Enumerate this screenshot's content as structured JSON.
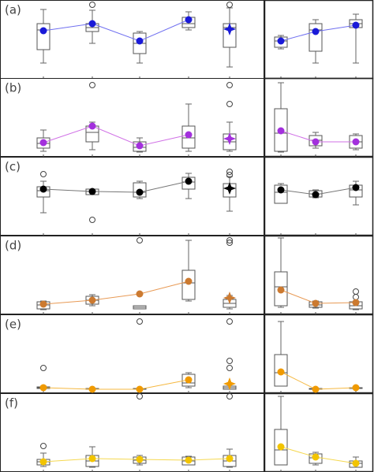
{
  "chart_data": [
    {
      "type": "box",
      "title": "(a)",
      "categories": [
        null,
        null,
        null,
        null,
        null
      ],
      "ylim": [
        0,
        100
      ],
      "color": "#1a1ad8",
      "line_color": "#7070f0",
      "markers": [
        "circle",
        "circle",
        "circle",
        "circle",
        "star"
      ],
      "min": [
        20,
        45,
        20,
        62,
        15
      ],
      "q1": [
        37,
        60,
        32,
        65,
        40
      ],
      "median": [
        62,
        65,
        45,
        70,
        65
      ],
      "q3": [
        70,
        70,
        58,
        78,
        70
      ],
      "max": [
        88,
        87,
        60,
        85,
        90
      ],
      "mean": [
        61,
        70,
        48,
        75,
        63
      ],
      "outliers": [
        [],
        [
          94
        ],
        [],
        [],
        [
          94
        ]
      ]
    },
    {
      "type": "box",
      "categories": [
        null,
        null,
        null
      ],
      "ylim": [
        0,
        100
      ],
      "color": "#1a1ad8",
      "line_color": "#7070f0",
      "markers": [
        "circle",
        "circle",
        "circle"
      ],
      "min": [
        38,
        20,
        20
      ],
      "q1": [
        40,
        35,
        65
      ],
      "median": [
        48,
        62,
        70
      ],
      "q3": [
        53,
        70,
        75
      ],
      "max": [
        55,
        75,
        82
      ],
      "mean": [
        48,
        60,
        68
      ],
      "outliers": [
        [],
        [],
        []
      ]
    },
    {
      "type": "box",
      "title": "(b)",
      "categories": [
        null,
        null,
        null,
        null,
        null
      ],
      "ylim": [
        0,
        100
      ],
      "color": "#a330dd",
      "line_color": "#d070e6",
      "markers": [
        "circle",
        "circle",
        "circle",
        "circle",
        "star"
      ],
      "min": [
        7,
        9,
        6,
        7,
        7
      ],
      "q1": [
        11,
        19,
        7,
        11,
        9
      ],
      "median": [
        17,
        31,
        12,
        24,
        19
      ],
      "q3": [
        24,
        39,
        19,
        39,
        29
      ],
      "max": [
        34,
        44,
        24,
        67,
        44
      ],
      "mean": [
        18,
        39,
        14,
        28,
        23
      ],
      "outliers": [
        [],
        [
          91
        ],
        [],
        [],
        [
          91,
          67
        ]
      ]
    },
    {
      "type": "box",
      "categories": [
        null,
        null,
        null
      ],
      "ylim": [
        0,
        100
      ],
      "color": "#a330dd",
      "line_color": "#d070e6",
      "markers": [
        "circle",
        "circle",
        "circle"
      ],
      "min": [
        6,
        11,
        9
      ],
      "q1": [
        7,
        14,
        11
      ],
      "median": [
        30,
        21,
        19
      ],
      "q3": [
        61,
        27,
        27
      ],
      "max": [
        94,
        31,
        29
      ],
      "mean": [
        33,
        19,
        19
      ],
      "outliers": [
        [],
        [],
        []
      ]
    },
    {
      "type": "box",
      "title": "(c)",
      "categories": [
        null,
        null,
        null,
        null,
        null
      ],
      "ylim": [
        0,
        100
      ],
      "color": "#000000",
      "line_color": "#777777",
      "markers": [
        "circle",
        "circle",
        "circle",
        "circle",
        "star"
      ],
      "min": [
        29,
        52,
        47,
        47,
        31
      ],
      "q1": [
        49,
        52,
        49,
        59,
        49
      ],
      "median": [
        57,
        56,
        55,
        68,
        60
      ],
      "q3": [
        62,
        59,
        67,
        74,
        66
      ],
      "max": [
        69,
        59,
        69,
        79,
        75
      ],
      "mean": [
        59,
        56,
        55,
        69,
        60
      ],
      "outliers": [
        [
          78
        ],
        [
          20
        ],
        [],
        [],
        [
          81,
          77
        ]
      ]
    },
    {
      "type": "box",
      "categories": [
        null,
        null,
        null
      ],
      "ylim": [
        0,
        100
      ],
      "color": "#000000",
      "line_color": "#777777",
      "markers": [
        "circle",
        "circle",
        "circle"
      ],
      "min": [
        41,
        48,
        39
      ],
      "q1": [
        41,
        49,
        49
      ],
      "median": [
        55,
        53,
        58
      ],
      "q3": [
        64,
        57,
        64
      ],
      "max": [
        66,
        58,
        69
      ],
      "mean": [
        58,
        52,
        61
      ],
      "outliers": [
        [],
        [],
        []
      ]
    },
    {
      "type": "box",
      "title": "(d)",
      "categories": [
        null,
        null,
        null,
        null,
        null
      ],
      "ylim": [
        0,
        100
      ],
      "color": "#cc7a30",
      "line_color": "#e89a55",
      "markers": [
        "circle",
        "circle",
        "circle",
        "circle",
        "star"
      ],
      "min": [
        6,
        11,
        7,
        17,
        7
      ],
      "q1": [
        7,
        13,
        7,
        19,
        9
      ],
      "median": [
        12,
        18,
        9,
        40,
        14
      ],
      "q3": [
        16,
        23,
        11,
        56,
        19
      ],
      "max": [
        17,
        25,
        11,
        94,
        24
      ],
      "mean": [
        13,
        18,
        26,
        42,
        21
      ],
      "outliers": [
        [],
        [],
        [
          94
        ],
        [],
        [
          94,
          91
        ]
      ]
    },
    {
      "type": "box",
      "categories": [
        null,
        null,
        null
      ],
      "ylim": [
        0,
        100
      ],
      "color": "#cc7a30",
      "line_color": "#e89a55",
      "markers": [
        "circle",
        "circle",
        "circle"
      ],
      "min": [
        9,
        8,
        6
      ],
      "q1": [
        11,
        9,
        7
      ],
      "median": [
        35,
        12,
        11
      ],
      "q3": [
        54,
        16,
        16
      ],
      "max": [
        97,
        17,
        17
      ],
      "mean": [
        31,
        14,
        15
      ],
      "outliers": [
        [],
        [],
        [
          29,
          22
        ]
      ]
    },
    {
      "type": "box",
      "title": "(e)",
      "categories": [
        null,
        null,
        null,
        null,
        null
      ],
      "ylim": [
        0,
        100
      ],
      "color": "#f09a00",
      "line_color": "#f5b840",
      "markers": [
        "circle",
        "circle",
        "circle",
        "circle",
        "star"
      ],
      "min": [
        6,
        5,
        5,
        7,
        5
      ],
      "q1": [
        6,
        5,
        5,
        9,
        5
      ],
      "median": [
        7,
        5,
        5,
        13,
        7
      ],
      "q3": [
        8,
        6,
        6,
        24,
        9
      ],
      "max": [
        9,
        6,
        6,
        26,
        12
      ],
      "mean": [
        7,
        5,
        5,
        17,
        12
      ],
      "outliers": [
        [
          32
        ],
        [],
        [
          91
        ],
        [],
        [
          91,
          41,
          32
        ]
      ]
    },
    {
      "type": "box",
      "categories": [
        null,
        null,
        null
      ],
      "ylim": [
        0,
        100
      ],
      "color": "#f09a00",
      "line_color": "#f5b840",
      "markers": [
        "circle",
        "circle",
        "circle"
      ],
      "min": [
        9,
        5,
        6
      ],
      "q1": [
        9,
        5,
        6
      ],
      "median": [
        26,
        5,
        6
      ],
      "q3": [
        49,
        6,
        7
      ],
      "max": [
        91,
        6,
        8
      ],
      "mean": [
        27,
        5,
        7
      ],
      "outliers": [
        [],
        [],
        []
      ]
    },
    {
      "type": "box",
      "title": "(f)",
      "categories": [
        null,
        null,
        null,
        null,
        null
      ],
      "ylim": [
        0,
        100
      ],
      "color": "#f2c400",
      "line_color": "#f5d850",
      "markers": [
        "circle",
        "circle",
        "circle",
        "circle",
        "circle"
      ],
      "min": [
        7,
        6,
        9,
        9,
        6
      ],
      "q1": [
        9,
        7,
        11,
        9,
        7
      ],
      "median": [
        13,
        14,
        15,
        14,
        14
      ],
      "q3": [
        16,
        21,
        19,
        19,
        21
      ],
      "max": [
        24,
        32,
        21,
        20,
        29
      ],
      "mean": [
        13,
        17,
        16,
        15,
        17
      ],
      "outliers": [
        [
          33
        ],
        [],
        [
          96
        ],
        [],
        [
          96
        ]
      ]
    },
    {
      "type": "box",
      "categories": [
        null,
        null,
        null
      ],
      "ylim": [
        0,
        100
      ],
      "color": "#f2c400",
      "line_color": "#f5d850",
      "markers": [
        "circle",
        "circle",
        "circle"
      ],
      "min": [
        9,
        9,
        6
      ],
      "q1": [
        9,
        11,
        6
      ],
      "median": [
        28,
        18,
        11
      ],
      "q3": [
        54,
        23,
        14
      ],
      "max": [
        96,
        25,
        19
      ],
      "mean": [
        32,
        19,
        11
      ],
      "outliers": [
        [],
        [],
        []
      ]
    }
  ]
}
